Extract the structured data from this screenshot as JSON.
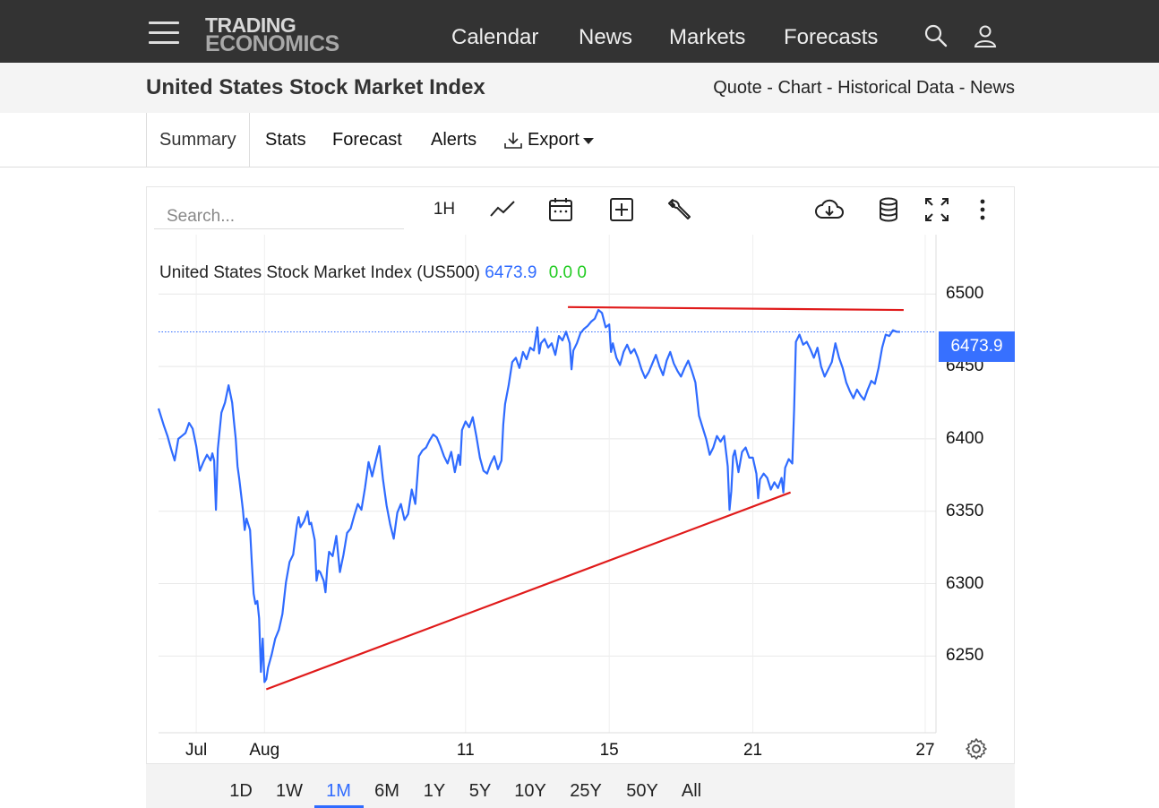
{
  "header": {
    "logo_line1": "TRADING",
    "logo_line2": "ECONOMICS",
    "nav": [
      "Calendar",
      "News",
      "Markets",
      "Forecasts"
    ],
    "icons": [
      "search-icon",
      "user-icon",
      "menu-icon"
    ]
  },
  "subheader": {
    "title": "United States Stock Market Index",
    "links": [
      "Quote",
      "Chart",
      "Historical Data",
      "News"
    ],
    "separator": " - "
  },
  "tabs": {
    "summary": "Summary",
    "stats": "Stats",
    "forecast": "Forecast",
    "alerts": "Alerts",
    "export": "Export"
  },
  "toolbar": {
    "search_placeholder": "Search...",
    "interval_label": "1H",
    "icons": [
      "line-chart-icon",
      "calendar-icon",
      "add-compare-icon",
      "wrench-icon",
      "cloud-download-icon",
      "database-icon",
      "fullscreen-icon",
      "more-vertical-icon"
    ]
  },
  "legend": {
    "name": "United States Stock Market Index (US500)",
    "value": "6473.9",
    "change": "0.0 0"
  },
  "price_tag": "6473.9",
  "ranges": {
    "items": [
      "1D",
      "1W",
      "1M",
      "6M",
      "1Y",
      "5Y",
      "10Y",
      "25Y",
      "50Y",
      "All"
    ],
    "active": "1M"
  },
  "colors": {
    "line": "#2f6bff",
    "trendline": "#e01b1b",
    "topbar": "#333333",
    "accent": "#3770ff",
    "change_positive": "#22cc22"
  },
  "chart_data": {
    "type": "line",
    "series_color": "#2f6bff",
    "x_ticks": [
      "Jul",
      "Aug",
      "11",
      "15",
      "21",
      "27"
    ],
    "x_tick_days": [
      -1,
      0.9,
      6.5,
      10.5,
      14.5,
      19.3
    ],
    "x_range": [
      -2.05,
      19.6
    ],
    "ylim": [
      6197,
      6541
    ],
    "y_ticks": [
      6250,
      6300,
      6350,
      6400,
      6450,
      6500
    ],
    "last_value": 6473.9,
    "points": [
      [
        -2.05,
        6421
      ],
      [
        -1.9,
        6409
      ],
      [
        -1.8,
        6402
      ],
      [
        -1.7,
        6393
      ],
      [
        -1.6,
        6385
      ],
      [
        -1.5,
        6400
      ],
      [
        -1.4,
        6402
      ],
      [
        -1.3,
        6404
      ],
      [
        -1.2,
        6411
      ],
      [
        -1.1,
        6407
      ],
      [
        -1.0,
        6395
      ],
      [
        -0.9,
        6378
      ],
      [
        -0.8,
        6384
      ],
      [
        -0.7,
        6389
      ],
      [
        -0.6,
        6385
      ],
      [
        -0.55,
        6390
      ],
      [
        -0.5,
        6385
      ],
      [
        -0.45,
        6351
      ],
      [
        -0.4,
        6393
      ],
      [
        -0.3,
        6418
      ],
      [
        -0.2,
        6425
      ],
      [
        -0.1,
        6437
      ],
      [
        0.0,
        6425
      ],
      [
        0.05,
        6412
      ],
      [
        0.1,
        6400
      ],
      [
        0.15,
        6381
      ],
      [
        0.2,
        6372
      ],
      [
        0.3,
        6351
      ],
      [
        0.35,
        6337
      ],
      [
        0.4,
        6345
      ],
      [
        0.5,
        6337
      ],
      [
        0.55,
        6314
      ],
      [
        0.6,
        6293
      ],
      [
        0.65,
        6286
      ],
      [
        0.7,
        6288
      ],
      [
        0.75,
        6276
      ],
      [
        0.8,
        6239
      ],
      [
        0.85,
        6262
      ],
      [
        0.9,
        6232
      ],
      [
        0.95,
        6234
      ],
      [
        1.0,
        6242
      ],
      [
        1.1,
        6251
      ],
      [
        1.2,
        6262
      ],
      [
        1.3,
        6268
      ],
      [
        1.4,
        6279
      ],
      [
        1.5,
        6301
      ],
      [
        1.6,
        6315
      ],
      [
        1.7,
        6320
      ],
      [
        1.8,
        6340
      ],
      [
        1.85,
        6346
      ],
      [
        1.9,
        6339
      ],
      [
        2.0,
        6343
      ],
      [
        2.1,
        6350
      ],
      [
        2.15,
        6341
      ],
      [
        2.2,
        6342
      ],
      [
        2.3,
        6330
      ],
      [
        2.35,
        6302
      ],
      [
        2.4,
        6309
      ],
      [
        2.45,
        6308
      ],
      [
        2.55,
        6302
      ],
      [
        2.6,
        6294
      ],
      [
        2.65,
        6311
      ],
      [
        2.7,
        6322
      ],
      [
        2.8,
        6319
      ],
      [
        2.9,
        6333
      ],
      [
        3.0,
        6308
      ],
      [
        3.1,
        6320
      ],
      [
        3.2,
        6335
      ],
      [
        3.3,
        6338
      ],
      [
        3.4,
        6347
      ],
      [
        3.5,
        6355
      ],
      [
        3.6,
        6351
      ],
      [
        3.7,
        6366
      ],
      [
        3.8,
        6384
      ],
      [
        3.9,
        6374
      ],
      [
        4.0,
        6385
      ],
      [
        4.1,
        6395
      ],
      [
        4.2,
        6372
      ],
      [
        4.3,
        6354
      ],
      [
        4.4,
        6341
      ],
      [
        4.5,
        6331
      ],
      [
        4.6,
        6349
      ],
      [
        4.7,
        6355
      ],
      [
        4.8,
        6344
      ],
      [
        4.9,
        6348
      ],
      [
        5.0,
        6365
      ],
      [
        5.1,
        6355
      ],
      [
        5.2,
        6388
      ],
      [
        5.3,
        6392
      ],
      [
        5.4,
        6394
      ],
      [
        5.5,
        6399
      ],
      [
        5.6,
        6403
      ],
      [
        5.7,
        6401
      ],
      [
        5.8,
        6395
      ],
      [
        5.9,
        6388
      ],
      [
        6.0,
        6383
      ],
      [
        6.1,
        6391
      ],
      [
        6.2,
        6377
      ],
      [
        6.3,
        6389
      ],
      [
        6.35,
        6382
      ],
      [
        6.4,
        6406
      ],
      [
        6.5,
        6412
      ],
      [
        6.6,
        6408
      ],
      [
        6.7,
        6415
      ],
      [
        6.8,
        6402
      ],
      [
        6.9,
        6387
      ],
      [
        7.0,
        6378
      ],
      [
        7.1,
        6376
      ],
      [
        7.2,
        6383
      ],
      [
        7.3,
        6388
      ],
      [
        7.4,
        6379
      ],
      [
        7.5,
        6385
      ],
      [
        7.55,
        6410
      ],
      [
        7.6,
        6424
      ],
      [
        7.7,
        6437
      ],
      [
        7.8,
        6453
      ],
      [
        7.9,
        6456
      ],
      [
        8.0,
        6449
      ],
      [
        8.1,
        6460
      ],
      [
        8.2,
        6455
      ],
      [
        8.3,
        6463
      ],
      [
        8.4,
        6461
      ],
      [
        8.5,
        6477
      ],
      [
        8.55,
        6459
      ],
      [
        8.6,
        6466
      ],
      [
        8.7,
        6469
      ],
      [
        8.8,
        6463
      ],
      [
        8.9,
        6466
      ],
      [
        9.0,
        6458
      ],
      [
        9.1,
        6471
      ],
      [
        9.2,
        6468
      ],
      [
        9.3,
        6474
      ],
      [
        9.4,
        6466
      ],
      [
        9.45,
        6448
      ],
      [
        9.5,
        6461
      ],
      [
        9.6,
        6466
      ],
      [
        9.7,
        6473
      ],
      [
        9.8,
        6476
      ],
      [
        9.9,
        6478
      ],
      [
        10.0,
        6481
      ],
      [
        10.1,
        6483
      ],
      [
        10.2,
        6489
      ],
      [
        10.3,
        6487
      ],
      [
        10.4,
        6477
      ],
      [
        10.5,
        6479
      ],
      [
        10.55,
        6460
      ],
      [
        10.6,
        6466
      ],
      [
        10.7,
        6456
      ],
      [
        10.8,
        6451
      ],
      [
        10.9,
        6460
      ],
      [
        11.0,
        6465
      ],
      [
        11.1,
        6459
      ],
      [
        11.2,
        6462
      ],
      [
        11.3,
        6456
      ],
      [
        11.4,
        6448
      ],
      [
        11.5,
        6442
      ],
      [
        11.6,
        6446
      ],
      [
        11.7,
        6452
      ],
      [
        11.8,
        6458
      ],
      [
        11.9,
        6450
      ],
      [
        12.0,
        6444
      ],
      [
        12.1,
        6454
      ],
      [
        12.2,
        6460
      ],
      [
        12.3,
        6452
      ],
      [
        12.4,
        6447
      ],
      [
        12.5,
        6443
      ],
      [
        12.6,
        6449
      ],
      [
        12.7,
        6454
      ],
      [
        12.8,
        6447
      ],
      [
        12.9,
        6439
      ],
      [
        13.0,
        6416
      ],
      [
        13.1,
        6408
      ],
      [
        13.2,
        6400
      ],
      [
        13.3,
        6389
      ],
      [
        13.4,
        6394
      ],
      [
        13.5,
        6402
      ],
      [
        13.6,
        6398
      ],
      [
        13.7,
        6402
      ],
      [
        13.8,
        6381
      ],
      [
        13.85,
        6351
      ],
      [
        13.9,
        6364
      ],
      [
        13.95,
        6388
      ],
      [
        14.0,
        6392
      ],
      [
        14.1,
        6377
      ],
      [
        14.2,
        6391
      ],
      [
        14.3,
        6394
      ],
      [
        14.4,
        6387
      ],
      [
        14.5,
        6387
      ],
      [
        14.6,
        6376
      ],
      [
        14.65,
        6359
      ],
      [
        14.7,
        6372
      ],
      [
        14.8,
        6376
      ],
      [
        14.9,
        6373
      ],
      [
        15.0,
        6365
      ],
      [
        15.1,
        6370
      ],
      [
        15.2,
        6366
      ],
      [
        15.3,
        6373
      ],
      [
        15.35,
        6363
      ],
      [
        15.4,
        6380
      ],
      [
        15.5,
        6386
      ],
      [
        15.6,
        6383
      ],
      [
        15.65,
        6420
      ],
      [
        15.7,
        6467
      ],
      [
        15.8,
        6472
      ],
      [
        15.9,
        6465
      ],
      [
        16.0,
        6467
      ],
      [
        16.1,
        6462
      ],
      [
        16.2,
        6456
      ],
      [
        16.3,
        6463
      ],
      [
        16.4,
        6450
      ],
      [
        16.5,
        6443
      ],
      [
        16.6,
        6448
      ],
      [
        16.7,
        6453
      ],
      [
        16.8,
        6466
      ],
      [
        16.9,
        6456
      ],
      [
        17.0,
        6449
      ],
      [
        17.1,
        6439
      ],
      [
        17.2,
        6433
      ],
      [
        17.3,
        6428
      ],
      [
        17.4,
        6434
      ],
      [
        17.5,
        6430
      ],
      [
        17.6,
        6427
      ],
      [
        17.7,
        6434
      ],
      [
        17.8,
        6440
      ],
      [
        17.9,
        6438
      ],
      [
        18.0,
        6449
      ],
      [
        18.1,
        6463
      ],
      [
        18.2,
        6472
      ],
      [
        18.3,
        6471
      ],
      [
        18.4,
        6475
      ],
      [
        18.5,
        6474
      ],
      [
        18.6,
        6473.9
      ]
    ],
    "annotations": [
      {
        "type": "trendline",
        "from": [
          0.95,
          6227
        ],
        "to": [
          15.55,
          6363
        ]
      },
      {
        "type": "trendline",
        "from": [
          9.35,
          6491
        ],
        "to": [
          18.7,
          6489
        ]
      }
    ]
  }
}
